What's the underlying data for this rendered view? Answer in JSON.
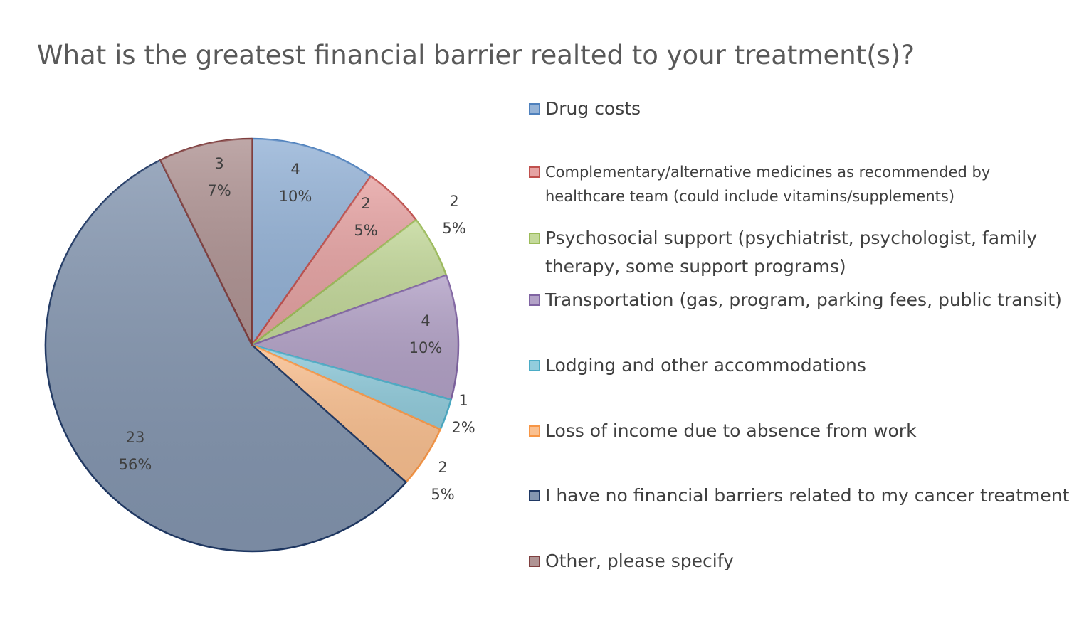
{
  "chart_data": {
    "type": "pie",
    "title": "What is the greatest financial barrier realted to your treatment(s)?",
    "slices": [
      {
        "label": "Drug costs",
        "value": 4,
        "percent": "10%",
        "color": "#95b3d7",
        "border": "#4f81bd"
      },
      {
        "label": "Complementary/alternative medicines as recommended by healthcare team (could include vitamins/supplements)",
        "value": 2,
        "percent": "5%",
        "color": "#e6a3a3",
        "border": "#c0504d"
      },
      {
        "label": "Psychosocial support (psychiatrist, psychologist, family therapy, some support programs)",
        "value": 2,
        "percent": "5%",
        "color": "#c4d99b",
        "border": "#9bbb59"
      },
      {
        "label": "Transportation (gas, program, parking fees, public transit)",
        "value": 4,
        "percent": "10%",
        "color": "#b3a2c7",
        "border": "#8064a2"
      },
      {
        "label": "Lodging and other accommodations",
        "value": 1,
        "percent": "2%",
        "color": "#93cddd",
        "border": "#4bacc6"
      },
      {
        "label": "Loss of income due to absence from work",
        "value": 2,
        "percent": "5%",
        "color": "#fac090",
        "border": "#f79646"
      },
      {
        "label": "I have no financial barriers related to my cancer treatment",
        "value": 23,
        "percent": "56%",
        "color": "#8496b0",
        "border": "#1f3864"
      },
      {
        "label": "Other, please specify",
        "value": 3,
        "percent": "7%",
        "color": "#b09494",
        "border": "#7f3f3f"
      }
    ],
    "legend": "right"
  }
}
